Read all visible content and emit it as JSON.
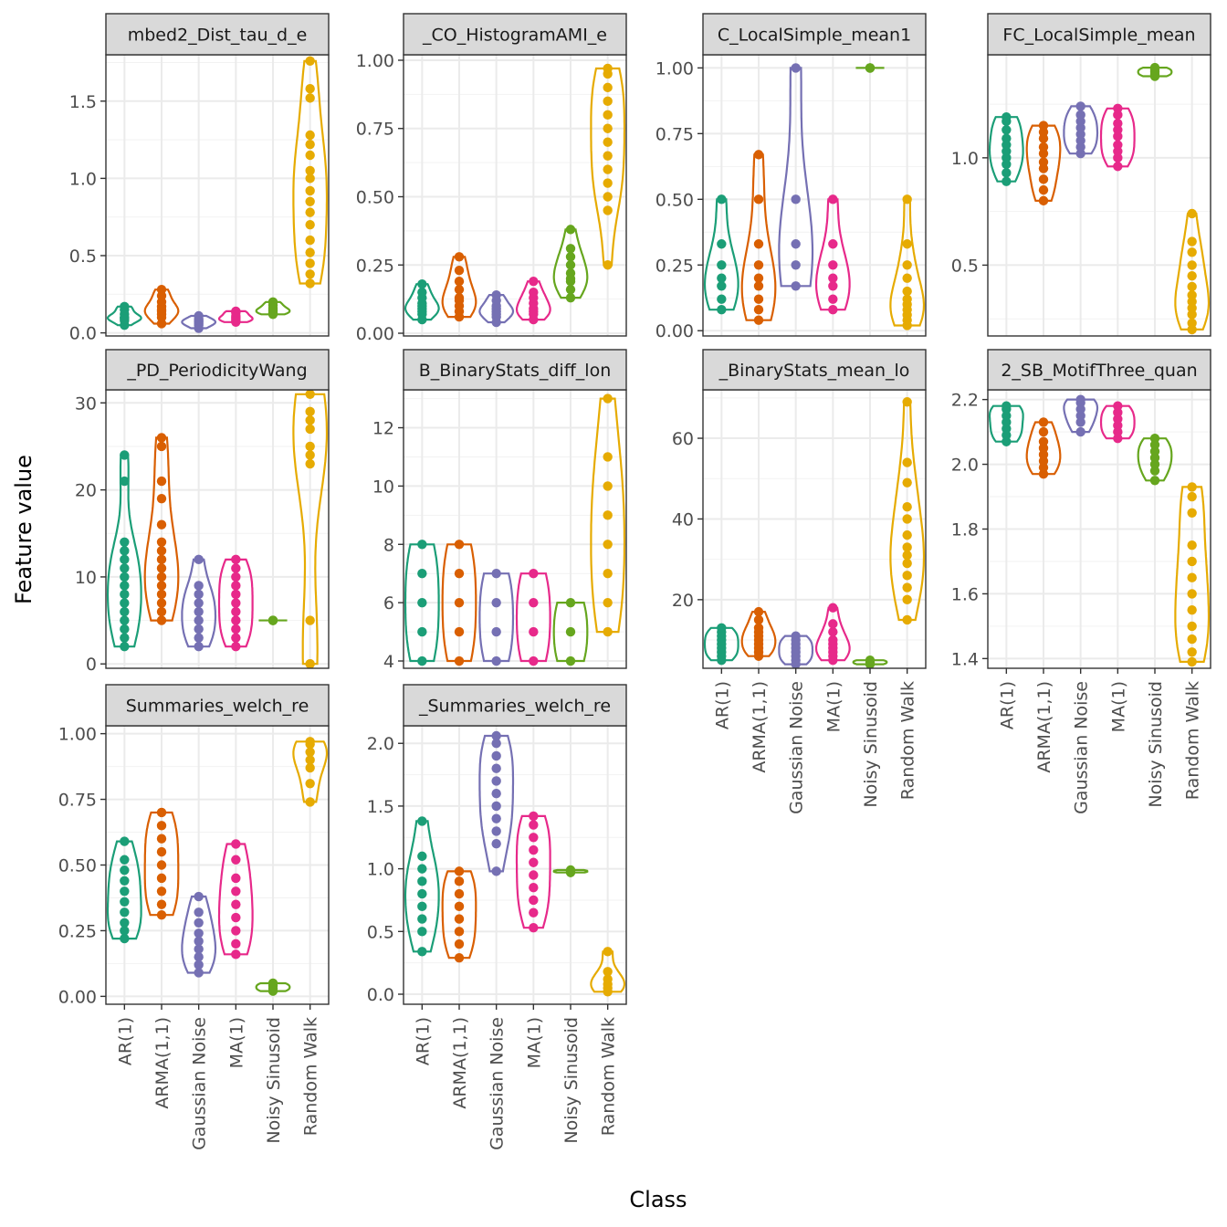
{
  "chart_data": {
    "type": "violin",
    "xlabel": "Class",
    "ylabel": "Feature value",
    "categories": [
      "AR(1)",
      "ARMA(1,1)",
      "Gaussian Noise",
      "MA(1)",
      "Noisy Sinusoid",
      "Random Walk"
    ],
    "colors": [
      "#1b9e77",
      "#d95f02",
      "#7570b3",
      "#e7298a",
      "#66a61e",
      "#e6ab02"
    ],
    "panels": [
      {
        "title": "mbed2_Dist_tau_d_e",
        "ylim": [
          -0.02,
          1.8
        ],
        "yticks": [
          0.0,
          0.5,
          1.0,
          1.5
        ],
        "points": [
          [
            0.05,
            0.08,
            0.1,
            0.12,
            0.15,
            0.17,
            0.1,
            0.09
          ],
          [
            0.06,
            0.1,
            0.14,
            0.17,
            0.2,
            0.24,
            0.28,
            0.15,
            0.12
          ],
          [
            0.03,
            0.05,
            0.07,
            0.09,
            0.11,
            0.06,
            0.08
          ],
          [
            0.07,
            0.09,
            0.11,
            0.13,
            0.14,
            0.1,
            0.08
          ],
          [
            0.12,
            0.14,
            0.16,
            0.18,
            0.2,
            0.15,
            0.13
          ],
          [
            0.32,
            0.38,
            0.45,
            0.52,
            0.6,
            0.7,
            0.78,
            0.85,
            0.92,
            1.0,
            1.05,
            1.15,
            1.22,
            1.28,
            1.52,
            1.58,
            1.76
          ]
        ]
      },
      {
        "title": "_CO_HistogramAMI_e",
        "ylim": [
          -0.01,
          1.02
        ],
        "yticks": [
          0.0,
          0.25,
          0.5,
          0.75,
          1.0
        ],
        "points": [
          [
            0.05,
            0.07,
            0.09,
            0.11,
            0.13,
            0.15,
            0.18,
            0.1,
            0.08
          ],
          [
            0.06,
            0.08,
            0.1,
            0.13,
            0.16,
            0.19,
            0.23,
            0.28,
            0.12
          ],
          [
            0.04,
            0.06,
            0.08,
            0.1,
            0.12,
            0.14,
            0.09,
            0.07
          ],
          [
            0.05,
            0.07,
            0.09,
            0.11,
            0.13,
            0.15,
            0.19,
            0.08
          ],
          [
            0.13,
            0.16,
            0.19,
            0.22,
            0.25,
            0.28,
            0.31,
            0.38,
            0.2
          ],
          [
            0.25,
            0.45,
            0.5,
            0.55,
            0.6,
            0.65,
            0.7,
            0.75,
            0.8,
            0.85,
            0.9,
            0.95,
            0.97
          ]
        ]
      },
      {
        "title": "C_LocalSimple_mean1",
        "ylim": [
          -0.02,
          1.05
        ],
        "yticks": [
          0.0,
          0.25,
          0.5,
          0.75,
          1.0
        ],
        "points": [
          [
            0.08,
            0.12,
            0.17,
            0.2,
            0.25,
            0.33,
            0.5
          ],
          [
            0.04,
            0.08,
            0.12,
            0.17,
            0.2,
            0.25,
            0.33,
            0.5,
            0.67
          ],
          [
            0.17,
            0.25,
            0.33,
            0.5,
            1.0
          ],
          [
            0.08,
            0.12,
            0.17,
            0.2,
            0.25,
            0.33,
            0.5
          ],
          [
            1.0,
            1.0,
            1.0
          ],
          [
            0.02,
            0.04,
            0.06,
            0.08,
            0.1,
            0.12,
            0.15,
            0.2,
            0.25,
            0.33,
            0.5
          ]
        ]
      },
      {
        "title": "FC_LocalSimple_mean",
        "ylim": [
          0.17,
          1.48
        ],
        "yticks": [
          0.5,
          1.0
        ],
        "points": [
          [
            0.89,
            0.93,
            0.97,
            1.0,
            1.03,
            1.06,
            1.09,
            1.13,
            1.17,
            1.19
          ],
          [
            0.8,
            0.85,
            0.9,
            0.95,
            0.98,
            1.02,
            1.05,
            1.09,
            1.12,
            1.15
          ],
          [
            1.02,
            1.05,
            1.08,
            1.11,
            1.14,
            1.17,
            1.2,
            1.24
          ],
          [
            0.96,
            1.0,
            1.03,
            1.06,
            1.1,
            1.13,
            1.16,
            1.2,
            1.23
          ],
          [
            1.38,
            1.39,
            1.4,
            1.41,
            1.42
          ],
          [
            0.2,
            0.23,
            0.27,
            0.3,
            0.33,
            0.36,
            0.4,
            0.45,
            0.5,
            0.56,
            0.61,
            0.74
          ]
        ]
      },
      {
        "title": "_PD_PeriodicityWang",
        "ylim": [
          -0.5,
          31.5
        ],
        "yticks": [
          0,
          10,
          20,
          30
        ],
        "points": [
          [
            2,
            3,
            4,
            5,
            6,
            7,
            8,
            9,
            10,
            11,
            12,
            13,
            14,
            21,
            24
          ],
          [
            5,
            6,
            7,
            8,
            9,
            10,
            11,
            12,
            13,
            14,
            16,
            19,
            21,
            25,
            26
          ],
          [
            2,
            3,
            4,
            5,
            6,
            7,
            8,
            9,
            12
          ],
          [
            2,
            3,
            4,
            5,
            6,
            7,
            8,
            9,
            10,
            11,
            12
          ],
          [
            5,
            5,
            5
          ],
          [
            0,
            0,
            5,
            23,
            24,
            25,
            27,
            28,
            29,
            31
          ]
        ]
      },
      {
        "title": "B_BinaryStats_diff_lon",
        "ylim": [
          3.75,
          13.3
        ],
        "yticks": [
          4,
          6,
          8,
          10,
          12
        ],
        "points": [
          [
            4,
            5,
            6,
            7,
            8
          ],
          [
            4,
            5,
            6,
            7,
            8
          ],
          [
            4,
            5,
            6,
            7
          ],
          [
            4,
            5,
            6,
            7
          ],
          [
            4,
            5,
            6
          ],
          [
            5,
            6,
            7,
            8,
            9,
            10,
            11,
            13
          ]
        ]
      },
      {
        "title": "_BinaryStats_mean_lo",
        "ylim": [
          3,
          72
        ],
        "yticks": [
          20,
          40,
          60
        ],
        "points": [
          [
            5,
            6,
            7,
            8,
            9,
            10,
            11,
            12,
            13
          ],
          [
            6,
            7,
            8,
            9,
            10,
            11,
            12,
            13,
            15,
            17
          ],
          [
            4,
            5,
            6,
            7,
            8,
            9,
            10,
            11
          ],
          [
            5,
            6,
            7,
            8,
            9,
            10,
            12,
            14,
            18
          ],
          [
            4,
            4.5,
            5
          ],
          [
            15,
            20,
            23,
            26,
            29,
            31,
            33,
            36,
            40,
            43,
            49,
            54,
            69
          ]
        ]
      },
      {
        "title": "2_SB_MotifThree_quan",
        "ylim": [
          1.37,
          2.23
        ],
        "yticks": [
          1.4,
          1.6,
          1.8,
          2.0,
          2.2
        ],
        "points": [
          [
            2.07,
            2.09,
            2.11,
            2.13,
            2.15,
            2.17,
            2.18
          ],
          [
            1.97,
            1.99,
            2.01,
            2.03,
            2.05,
            2.07,
            2.1,
            2.13
          ],
          [
            2.1,
            2.13,
            2.15,
            2.17,
            2.19,
            2.2
          ],
          [
            2.08,
            2.1,
            2.12,
            2.14,
            2.16,
            2.18
          ],
          [
            1.95,
            1.98,
            2.0,
            2.02,
            2.04,
            2.06,
            2.08
          ],
          [
            1.39,
            1.42,
            1.46,
            1.5,
            1.55,
            1.6,
            1.65,
            1.7,
            1.75,
            1.85,
            1.9,
            1.93
          ]
        ]
      },
      {
        "title": "Summaries_welch_re",
        "ylim": [
          -0.03,
          1.03
        ],
        "yticks": [
          0.0,
          0.25,
          0.5,
          0.75,
          1.0
        ],
        "points": [
          [
            0.22,
            0.25,
            0.28,
            0.32,
            0.36,
            0.4,
            0.44,
            0.48,
            0.52,
            0.59
          ],
          [
            0.31,
            0.35,
            0.4,
            0.45,
            0.5,
            0.55,
            0.6,
            0.65,
            0.7
          ],
          [
            0.09,
            0.12,
            0.15,
            0.18,
            0.21,
            0.24,
            0.28,
            0.32,
            0.38
          ],
          [
            0.16,
            0.2,
            0.25,
            0.3,
            0.35,
            0.4,
            0.45,
            0.52,
            0.58
          ],
          [
            0.02,
            0.03,
            0.04,
            0.05
          ],
          [
            0.74,
            0.81,
            0.87,
            0.9,
            0.93,
            0.96,
            0.97
          ]
        ]
      },
      {
        "title": "_Summaries_welch_re",
        "ylim": [
          -0.08,
          2.14
        ],
        "yticks": [
          0.0,
          0.5,
          1.0,
          1.5,
          2.0
        ],
        "points": [
          [
            0.34,
            0.5,
            0.6,
            0.7,
            0.8,
            0.9,
            1.0,
            1.1,
            1.38
          ],
          [
            0.29,
            0.4,
            0.5,
            0.6,
            0.7,
            0.8,
            0.9,
            0.98
          ],
          [
            0.98,
            1.2,
            1.3,
            1.4,
            1.5,
            1.6,
            1.7,
            1.8,
            1.9,
            2.0,
            2.06
          ],
          [
            0.53,
            0.65,
            0.75,
            0.85,
            0.95,
            1.05,
            1.15,
            1.25,
            1.35,
            1.42
          ],
          [
            0.97,
            0.98,
            0.99
          ],
          [
            0.02,
            0.05,
            0.08,
            0.12,
            0.18,
            0.34
          ]
        ]
      }
    ]
  }
}
